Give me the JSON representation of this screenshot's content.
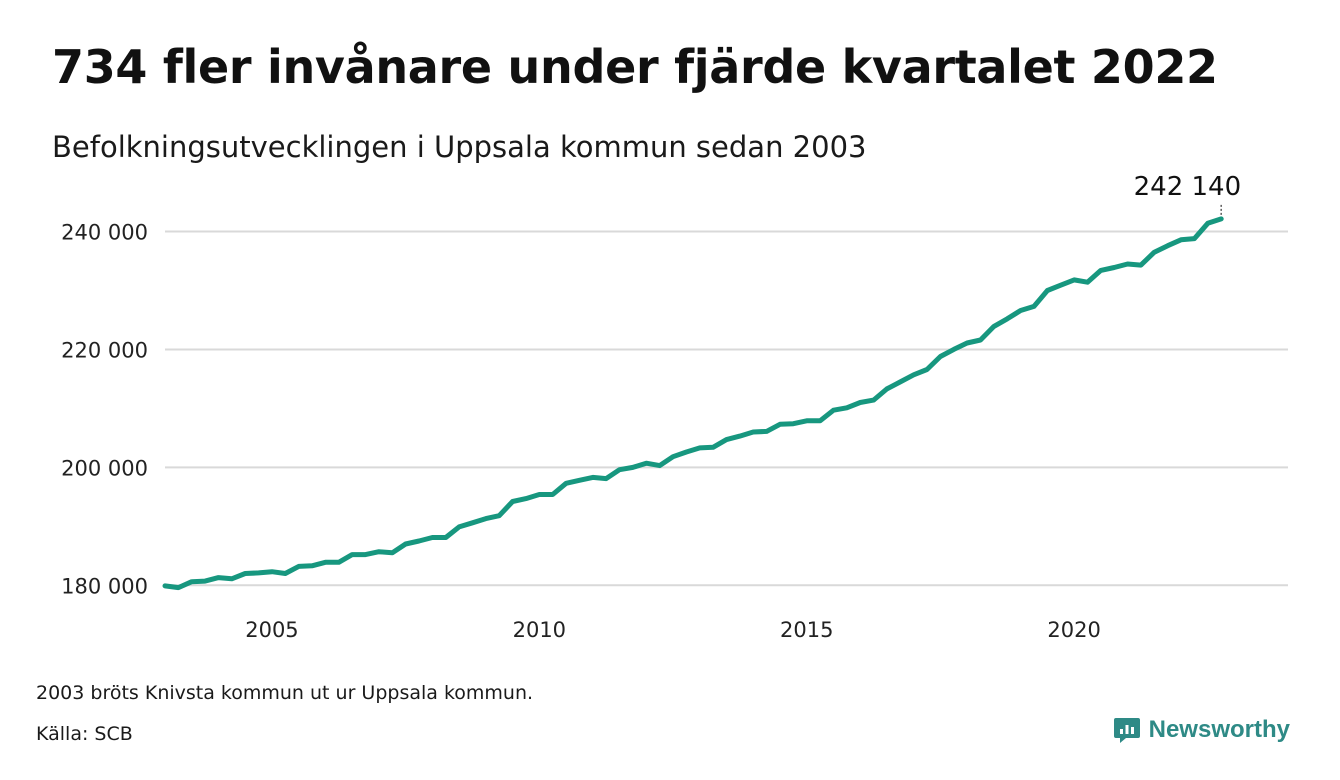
{
  "header": {
    "title": "734 fler invånare under fjärde kvartalet 2022",
    "subtitle": "Befolkningsutvecklingen i Uppsala kommun sedan 2003"
  },
  "footer": {
    "note": "2003 bröts Knivsta kommun ut ur Uppsala kommun.",
    "source": "Källa: SCB",
    "brand_name": "Newsworthy",
    "brand_icon": "newsworthy-logo-icon",
    "brand_color": "#2e8a86"
  },
  "chart_data": {
    "type": "line",
    "title": "734 fler invånare under fjärde kvartalet 2022",
    "subtitle": "Befolkningsutvecklingen i Uppsala kommun sedan 2003",
    "xlabel": "",
    "ylabel": "",
    "grid": true,
    "legend": "none",
    "line_color": "#17977f",
    "grid_color": "#d9d9d9",
    "xlim": [
      2003.0,
      2024.0
    ],
    "ylim": [
      177500,
      244500
    ],
    "x_ticks": [
      2005,
      2010,
      2015,
      2020
    ],
    "x_tick_labels": [
      "2005",
      "2010",
      "2015",
      "2020"
    ],
    "y_ticks": [
      180000,
      200000,
      220000,
      240000
    ],
    "y_tick_labels": [
      "180 000",
      "200 000",
      "220 000",
      "240 000"
    ],
    "last_value_label": "242 140",
    "series": [
      {
        "x": [
          2003.0,
          2003.25,
          2003.5,
          2003.75,
          2004.0,
          2004.25,
          2004.5,
          2004.75,
          2005.0,
          2005.25,
          2005.5,
          2005.75,
          2006.0,
          2006.25,
          2006.5,
          2006.75,
          2007.0,
          2007.25,
          2007.5,
          2007.75,
          2008.0,
          2008.25,
          2008.5,
          2008.75,
          2009.0,
          2009.25,
          2009.5,
          2009.75,
          2010.0,
          2010.25,
          2010.5,
          2010.75,
          2011.0,
          2011.25,
          2011.5,
          2011.75,
          2012.0,
          2012.25,
          2012.5,
          2012.75,
          2013.0,
          2013.25,
          2013.5,
          2013.75,
          2014.0,
          2014.25,
          2014.5,
          2014.75,
          2015.0,
          2015.25,
          2015.5,
          2015.75,
          2016.0,
          2016.25,
          2016.5,
          2016.75,
          2017.0,
          2017.25,
          2017.5,
          2017.75,
          2018.0,
          2018.25,
          2018.5,
          2018.75,
          2019.0,
          2019.25,
          2019.5,
          2019.75,
          2020.0,
          2020.25,
          2020.5,
          2020.75,
          2021.0,
          2021.25,
          2021.5,
          2021.75,
          2022.0,
          2022.25,
          2022.5,
          2022.75
        ],
        "values": [
          179900,
          179600,
          180600,
          180700,
          181300,
          181100,
          182000,
          182100,
          182300,
          182000,
          183200,
          183300,
          183900,
          183900,
          185200,
          185200,
          185700,
          185500,
          187000,
          187500,
          188100,
          188100,
          189900,
          190600,
          191300,
          191800,
          194200,
          194700,
          195400,
          195400,
          197300,
          197800,
          198300,
          198100,
          199600,
          200000,
          200700,
          200300,
          201800,
          202600,
          203300,
          203400,
          204700,
          205300,
          206000,
          206100,
          207300,
          207400,
          207900,
          207900,
          209700,
          210100,
          211000,
          211400,
          213300,
          214500,
          215700,
          216600,
          218800,
          220000,
          221100,
          221600,
          223900,
          225200,
          226600,
          227300,
          230000,
          230900,
          231800,
          231400,
          233400,
          233900,
          234500,
          234300,
          236500,
          237600,
          238600,
          238800,
          241400,
          242140
        ]
      }
    ]
  }
}
